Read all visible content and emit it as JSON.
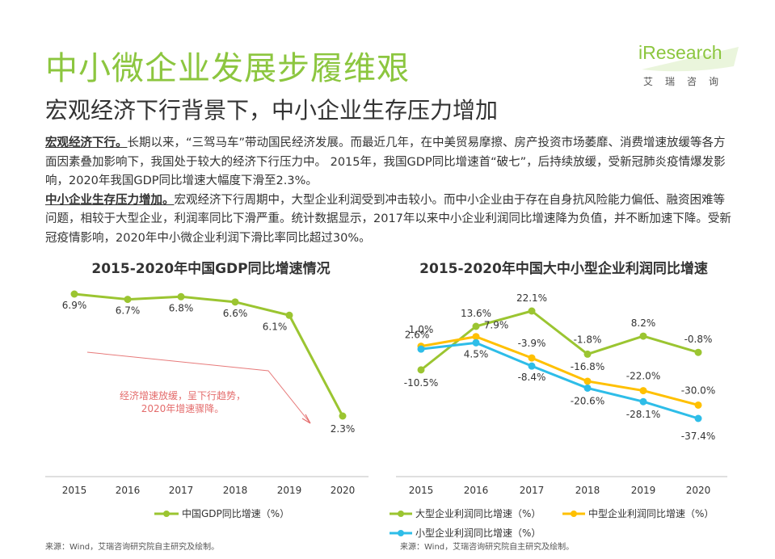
{
  "header": {
    "title": "中小微企业发展步履维艰",
    "subtitle": "宏观经济下行背景下，中小企业生存压力增加",
    "logo_main": "iResearch",
    "logo_sub": "艾瑞咨询"
  },
  "body": {
    "para1_lead": "宏观经济下行。",
    "para1_text": "长期以来，“三驾马车”带动国民经济发展。而最近几年，在中美贸易摩擦、房产投资市场萎靡、消费增速放缓等各方面因素叠加影响下，我国处于较大的经济下行压力中。 2015年，我国GDP同比增速首“破七”，后持续放缓，受新冠肺炎疫情爆发影响，2020年我国GDP同比增速大幅度下滑至2.3%。",
    "para2_lead": "中小企业生存压力增加。",
    "para2_text": "宏观经济下行周期中，大型企业利润受到冲击较小。而中小企业由于存在自身抗风险能力偏低、融资困难等问题，相较于大型企业，利润率同比下滑严重。统计数据显示，2017年以来中小企业利润同比增速降为负值，并不断加速下降。受新冠疫情影响，2020年中小微企业利润下滑比率同比超过30%。"
  },
  "colors": {
    "green": "#9bc531",
    "yellow": "#ffc000",
    "blue": "#2ebde8",
    "arrow": "#e46c6c"
  },
  "chart_data": [
    {
      "type": "line",
      "title": "2015-2020年中国GDP同比增速情况",
      "x": [
        "2015",
        "2016",
        "2017",
        "2018",
        "2019",
        "2020"
      ],
      "series": [
        {
          "name": "中国GDP同比增速（%）",
          "values": [
            6.9,
            6.7,
            6.8,
            6.6,
            6.1,
            2.3
          ],
          "labels": [
            "6.9%",
            "6.7%",
            "6.8%",
            "6.6%",
            "6.1%",
            "2.3%"
          ],
          "color": "#9bc531"
        }
      ],
      "annotation": [
        "经济增速放缓，呈下行趋势，",
        "2020年增速骤降。"
      ],
      "legend": "bottom",
      "grid": false
    },
    {
      "type": "line",
      "title": "2015-2020年中国大中小型企业利润同比增速",
      "x": [
        "2015",
        "2016",
        "2017",
        "2018",
        "2019",
        "2020"
      ],
      "series": [
        {
          "name": "大型企业利润同比增速（%）",
          "values": [
            -10.5,
            13.6,
            22.1,
            -1.8,
            8.2,
            -0.8
          ],
          "labels": [
            "-10.5%",
            "13.6%",
            "22.1%",
            "-1.8%",
            "8.2%",
            "-0.8%"
          ],
          "color": "#9bc531"
        },
        {
          "name": "中型企业利润同比增速（%）",
          "values": [
            2.6,
            7.9,
            -3.9,
            -16.8,
            -22.0,
            -30.0
          ],
          "labels": [
            "2.6%",
            "7.9%",
            "-3.9%",
            "-16.8%",
            "-22.0%",
            "-30.0%"
          ],
          "color": "#ffc000"
        },
        {
          "name": "小型企业利润同比增速（%）",
          "values": [
            1.0,
            4.5,
            -8.4,
            -20.6,
            -28.1,
            -37.4
          ],
          "labels": [
            "1.0%",
            "4.5%",
            "-8.4%",
            "-20.6%",
            "-28.1%",
            "-37.4%"
          ],
          "color": "#2ebde8"
        }
      ],
      "legend": "bottom",
      "grid": false
    }
  ],
  "sources": {
    "left": "来源：Wind，艾瑞咨询研究院自主研究及绘制。",
    "right": "来源：Wind，艾瑞咨询研究院自主研究及绘制。"
  }
}
